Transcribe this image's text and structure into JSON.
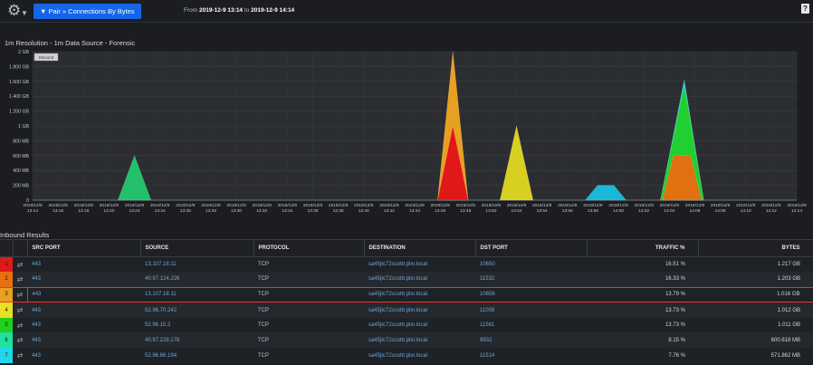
{
  "topbar": {
    "pair_button": "▼ Pair » Connections By Bytes",
    "from_label": "From",
    "from_value": "2019-12-9 13:14",
    "to_label": "to",
    "to_value": "2019-12-9 14:14",
    "help": "?"
  },
  "chart_title": "1m Resolution - 1m Data Source - Forensic",
  "chart_data": {
    "type": "area",
    "legend": {
      "label": "Inbound",
      "placement": "top-left"
    },
    "y_ticks": [
      "0",
      "200 MB",
      "400 MB",
      "600 MB",
      "800 MB",
      "1 GB",
      "1.200 GB",
      "1.400 GB",
      "1.600 GB",
      "1.800 GB",
      "2 GB"
    ],
    "ylim_gb": [
      0,
      2
    ],
    "x_ticks_date": "2019/12/9",
    "x_ticks": [
      "13:14",
      "13:16",
      "13:18",
      "13:20",
      "13:22",
      "13:24",
      "13:26",
      "13:28",
      "13:30",
      "13:32",
      "13:34",
      "13:36",
      "13:38",
      "13:40",
      "13:42",
      "13:44",
      "13:46",
      "13:48",
      "13:50",
      "13:52",
      "13:54",
      "13:56",
      "13:58",
      "14:00",
      "14:02",
      "14:04",
      "14:06",
      "14:08",
      "14:10",
      "14:12",
      "14:14"
    ],
    "peaks": [
      {
        "minute": "13:22",
        "value_gb": 0.6,
        "color": "#22c06a"
      },
      {
        "minute": "13:47",
        "value_gb": 2.0,
        "color": "#e8a020"
      },
      {
        "minute": "13:47",
        "value_gb": 1.0,
        "color": "#e01818"
      },
      {
        "minute": "13:52",
        "value_gb": 1.0,
        "color": "#d8d020"
      },
      {
        "minute": "13:59",
        "value_gb": 0.2,
        "color": "#1ab8d8"
      },
      {
        "minute": "14:05",
        "value_gb": 1.62,
        "color": "#1ac8e0"
      },
      {
        "minute": "14:05",
        "value_gb": 1.55,
        "color": "#20d030"
      },
      {
        "minute": "14:05",
        "value_gb": 0.6,
        "color": "#e07010"
      }
    ]
  },
  "results_title": "Inbound Results",
  "table": {
    "columns": [
      "SRC PORT",
      "SOURCE",
      "PROTOCOL",
      "DESTINATION",
      "DST PORT",
      "TRAFFIC %",
      "BYTES"
    ],
    "sort_column": "BYTES",
    "rows": [
      {
        "n": "1",
        "color": "#e01818",
        "src_port": "443",
        "source": "13.107.18.11",
        "protocol": "TCP",
        "destination": "sa45jtc72scottr.plxr.local",
        "dst_port": "10650",
        "traffic": "16.51 %",
        "bytes": "1.217 GB"
      },
      {
        "n": "2",
        "color": "#e87010",
        "src_port": "443",
        "source": "40.97.124.226",
        "protocol": "TCP",
        "destination": "sa45jtc72scottr.plxr.local",
        "dst_port": "11532",
        "traffic": "16.33 %",
        "bytes": "1.203 GB"
      },
      {
        "n": "3",
        "color": "#e8a020",
        "src_port": "443",
        "source": "13.107.18.11",
        "protocol": "TCP",
        "destination": "sa45jtc72scottr.plxr.local",
        "dst_port": "10656",
        "traffic": "13.79 %",
        "bytes": "1.016 GB"
      },
      {
        "n": "4",
        "color": "#e8e020",
        "src_port": "443",
        "source": "52.96.70.242",
        "protocol": "TCP",
        "destination": "sa45jtc72scottr.plxr.local",
        "dst_port": "11008",
        "traffic": "13.73 %",
        "bytes": "1.012 GB"
      },
      {
        "n": "5",
        "color": "#20d020",
        "src_port": "443",
        "source": "52.96.15.2",
        "protocol": "TCP",
        "destination": "sa45jtc72scottr.plxr.local",
        "dst_port": "11561",
        "traffic": "13.73 %",
        "bytes": "1.011 GB"
      },
      {
        "n": "6",
        "color": "#20e0a0",
        "src_port": "443",
        "source": "40.97.228.178",
        "protocol": "TCP",
        "destination": "sa45jtc72scottr.plxr.local",
        "dst_port": "9932",
        "traffic": "8.15 %",
        "bytes": "600.618 MB"
      },
      {
        "n": "7",
        "color": "#20d8e8",
        "src_port": "443",
        "source": "52.96.66.194",
        "protocol": "TCP",
        "destination": "sa45jtc72scottr.plxr.local",
        "dst_port": "11514",
        "traffic": "7.76 %",
        "bytes": "571.862 MB"
      }
    ]
  }
}
